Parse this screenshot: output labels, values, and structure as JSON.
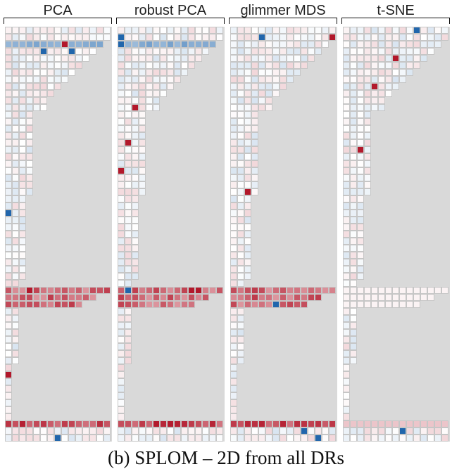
{
  "chart_data": {
    "type": "heatmap",
    "title": "",
    "caption": "(b)  SPLOM – 2D from all DRs",
    "panels": [
      {
        "label": "PCA"
      },
      {
        "label": "robust PCA"
      },
      {
        "label": "glimmer MDS"
      },
      {
        "label": "t-SNE"
      }
    ],
    "color_scale": {
      "negative": "#2166ac",
      "neutral": "#ffffff",
      "positive": "#b2182b"
    },
    "annotations": [
      {
        "type": "arrow",
        "panel": "PCA",
        "points_to": "highlighted row near top"
      }
    ]
  }
}
